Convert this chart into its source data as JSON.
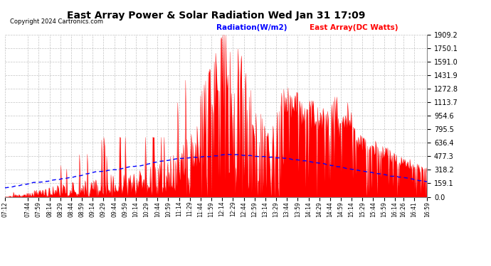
{
  "title": "East Array Power & Solar Radiation Wed Jan 31 17:09",
  "copyright": "Copyright 2024 Cartronics.com",
  "legend_radiation": "Radiation(W/m2)",
  "legend_east": "East Array(DC Watts)",
  "radiation_color": "#0000ff",
  "east_color": "#ff0000",
  "background_color": "#ffffff",
  "plot_bg_color": "#ffffff",
  "ymin": 0.0,
  "ymax": 1909.4,
  "ytick_interval": 159.1,
  "grid_color": "#aaaaaa",
  "grid_style": "--",
  "time_labels": [
    "07:12",
    "07:44",
    "07:59",
    "08:14",
    "08:29",
    "08:44",
    "08:59",
    "09:14",
    "09:29",
    "09:44",
    "09:59",
    "10:14",
    "10:29",
    "10:44",
    "10:59",
    "11:14",
    "11:29",
    "11:44",
    "11:59",
    "12:14",
    "12:29",
    "12:44",
    "12:59",
    "13:14",
    "13:29",
    "13:44",
    "13:59",
    "14:14",
    "14:29",
    "14:44",
    "14:59",
    "15:14",
    "15:29",
    "15:44",
    "15:59",
    "16:14",
    "16:26",
    "16:41",
    "16:59"
  ]
}
